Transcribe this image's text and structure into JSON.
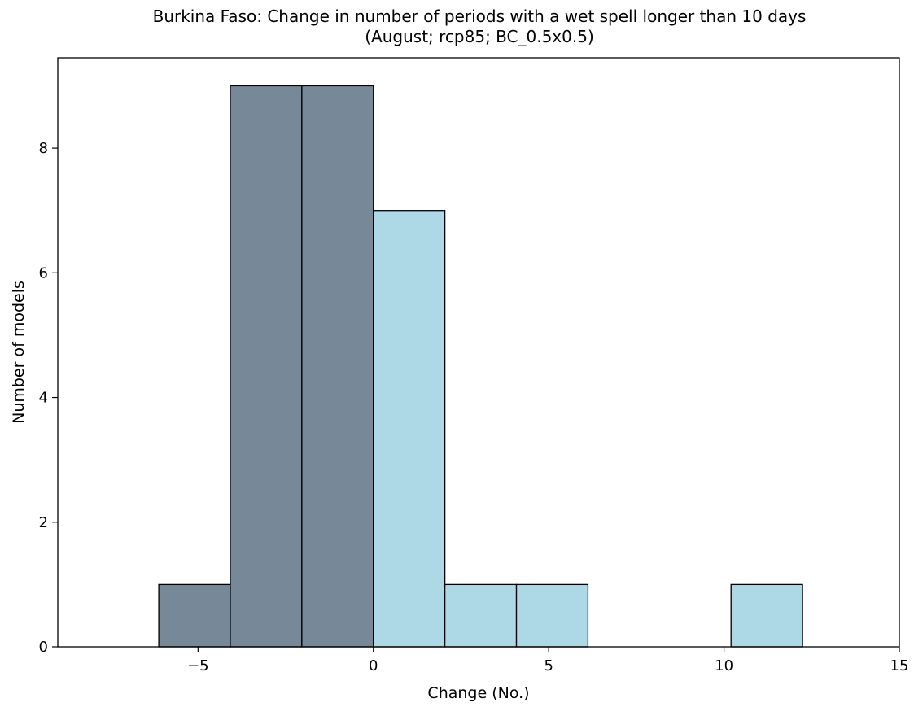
{
  "chart_data": {
    "type": "bar",
    "title": "Burkina Faso: Change in number of periods with a wet spell longer than 10 days",
    "subtitle": "(August; rcp85; BC_0.5x0.5)",
    "xlabel": "Change (No.)",
    "ylabel": "Number of models",
    "xlim": [
      -9,
      15
    ],
    "ylim": [
      0,
      9.45
    ],
    "x_ticks": [
      -5,
      0,
      5,
      10,
      15
    ],
    "x_tick_labels": [
      "−5",
      "0",
      "5",
      "10",
      "15"
    ],
    "y_ticks": [
      0,
      2,
      4,
      6,
      8
    ],
    "y_tick_labels": [
      "0",
      "2",
      "4",
      "6",
      "8"
    ],
    "grid": false,
    "bin_edges": [
      -6.12,
      -4.08,
      -2.04,
      0,
      2.04,
      4.08,
      6.12,
      8.16,
      10.2,
      12.24
    ],
    "values": [
      1,
      9,
      9,
      7,
      1,
      1,
      0,
      0,
      1
    ],
    "colors": {
      "negative": "#778899",
      "positive": "#add8e6",
      "edge": "#000000"
    }
  }
}
